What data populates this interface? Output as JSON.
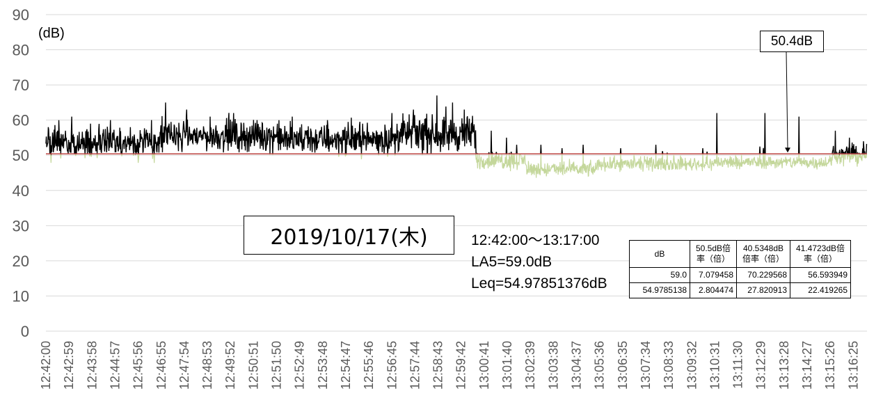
{
  "chart_data": {
    "type": "line",
    "unit_label": "(dB)",
    "ylim": [
      0,
      90
    ],
    "yticks": [
      "0",
      "10",
      "20",
      "30",
      "40",
      "50",
      "60",
      "70",
      "80",
      "90"
    ],
    "x_start": "12:42:00",
    "x_end": "13:17:00",
    "x_step_seconds": 59,
    "xticks": [
      "12:42:00",
      "12:42:59",
      "12:43:58",
      "12:44:57",
      "12:45:56",
      "12:46:55",
      "12:47:54",
      "12:48:53",
      "12:49:52",
      "12:50:51",
      "12:51:50",
      "12:52:49",
      "12:53:48",
      "12:54:47",
      "12:55:46",
      "12:56:45",
      "12:57:44",
      "12:58:43",
      "12:59:42",
      "13:00:41",
      "13:01:40",
      "13:02:39",
      "13:03:38",
      "13:04:37",
      "13:05:36",
      "13:06:35",
      "13:07:34",
      "13:08:33",
      "13:09:32",
      "13:10:31",
      "13:11:30",
      "13:12:29",
      "13:13:28",
      "13:14:27",
      "13:15:26",
      "13:16:25"
    ],
    "grid": true,
    "threshold": {
      "value": 50.4,
      "label": "50.4dB",
      "color": "#c0504d"
    },
    "series": [
      {
        "color": "#000000",
        "role": "above-threshold"
      },
      {
        "color": "#c4d79b",
        "role": "below-threshold"
      }
    ],
    "segments": [
      {
        "from": "12:42:00",
        "to": "12:47:00",
        "mean": 53.5,
        "spread": 3.2,
        "spikes": [
          [
            0.02,
            58
          ],
          [
            0.1,
            57
          ],
          [
            0.22,
            61
          ],
          [
            0.38,
            59
          ],
          [
            0.55,
            60
          ],
          [
            0.72,
            58
          ],
          [
            0.9,
            60
          ]
        ]
      },
      {
        "from": "12:47:00",
        "to": "12:52:00",
        "mean": 55.5,
        "spread": 3.0,
        "spikes": [
          [
            0.02,
            65
          ],
          [
            0.2,
            63
          ],
          [
            0.4,
            61
          ],
          [
            0.6,
            62
          ],
          [
            0.8,
            60
          ]
        ]
      },
      {
        "from": "12:52:00",
        "to": "12:57:00",
        "mean": 54.5,
        "spread": 3.0,
        "spikes": [
          [
            0.1,
            61
          ],
          [
            0.4,
            60
          ],
          [
            0.7,
            59
          ],
          [
            0.95,
            62
          ]
        ]
      },
      {
        "from": "12:57:00",
        "to": "13:00:20",
        "mean": 56.0,
        "spread": 3.5,
        "spikes": [
          [
            0.2,
            63
          ],
          [
            0.5,
            67
          ],
          [
            0.7,
            65
          ],
          [
            0.85,
            63
          ]
        ]
      },
      {
        "from": "13:00:20",
        "to": "13:02:30",
        "mean": 48.5,
        "spread": 1.8,
        "spikes": [
          [
            0.3,
            57
          ],
          [
            0.6,
            55
          ],
          [
            0.8,
            53
          ]
        ]
      },
      {
        "from": "13:02:30",
        "to": "13:05:30",
        "mean": 46.0,
        "spread": 1.5,
        "spikes": [
          [
            0.2,
            53
          ],
          [
            0.5,
            52
          ],
          [
            0.8,
            53
          ]
        ]
      },
      {
        "from": "13:05:30",
        "to": "13:10:30",
        "mean": 47.5,
        "spread": 1.3,
        "spikes": [
          [
            0.2,
            52
          ],
          [
            0.5,
            53
          ],
          [
            0.9,
            52
          ]
        ]
      },
      {
        "from": "13:10:30",
        "to": "13:15:30",
        "mean": 48.0,
        "spread": 1.3,
        "spikes": [
          [
            0.02,
            62
          ],
          [
            0.43,
            62
          ],
          [
            0.72,
            61
          ]
        ]
      },
      {
        "from": "13:15:30",
        "to": "13:17:00",
        "mean": 50.0,
        "spread": 2.0,
        "spikes": [
          [
            0.1,
            57
          ],
          [
            0.5,
            55
          ],
          [
            0.9,
            54
          ]
        ]
      }
    ]
  },
  "date_label": "2019/10/17(木)",
  "info": {
    "period": "12:42:00～13:17:00",
    "la5": "LA5=59.0dB",
    "leq": "Leq=54.97851376dB"
  },
  "stats_table": {
    "headers": [
      "dB",
      "50.5dB倍率（倍）",
      "40.5348dB倍率（倍）",
      "41.4723dB倍率（倍）"
    ],
    "rows": [
      [
        "59.0",
        "7.079458",
        "70.229568",
        "56.593949"
      ],
      [
        "54.9785138",
        "2.804474",
        "27.820913",
        "22.419265"
      ]
    ]
  }
}
